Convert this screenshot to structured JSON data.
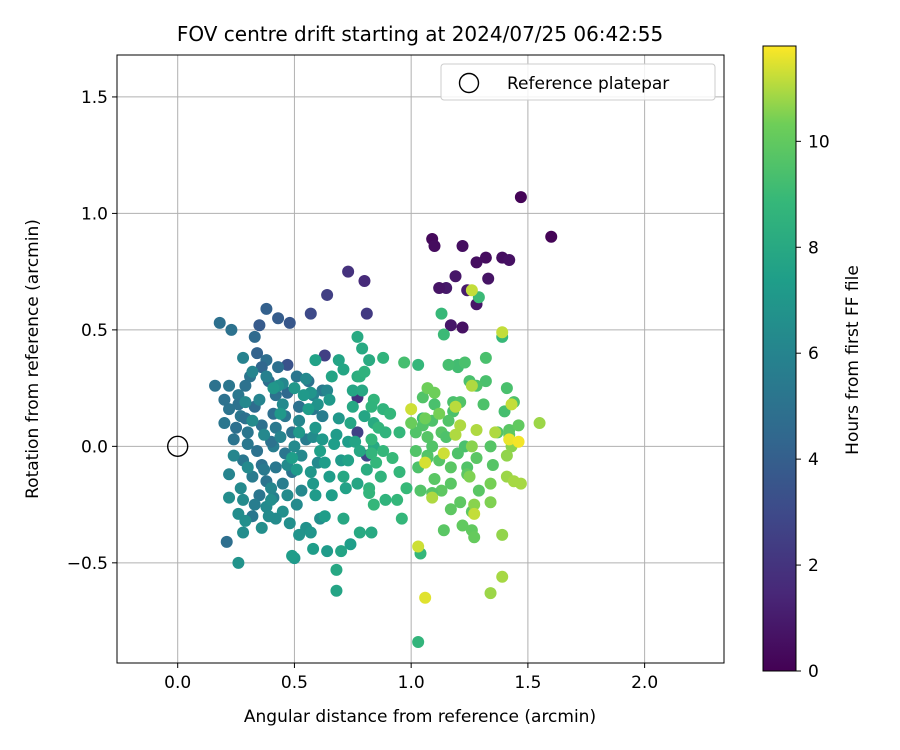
{
  "chart_data": {
    "type": "scatter",
    "title": "FOV centre drift starting at 2024/07/25 06:42:55",
    "xlabel": "Angular distance from reference (arcmin)",
    "ylabel": "Rotation from reference (arcmin)",
    "xlim": [
      -0.26,
      2.34
    ],
    "ylim": [
      -0.93,
      1.68
    ],
    "xticks": [
      0.0,
      0.5,
      1.0,
      1.5,
      2.0
    ],
    "xtick_labels": [
      "0.0",
      "0.5",
      "1.0",
      "1.5",
      "2.0"
    ],
    "yticks": [
      -0.5,
      0.0,
      0.5,
      1.0,
      1.5
    ],
    "ytick_labels": [
      "−0.5",
      "0.0",
      "0.5",
      "1.0",
      "1.5"
    ],
    "grid": true,
    "legend": {
      "placement": "top-right",
      "entries": [
        "Reference platepar"
      ]
    },
    "reference_point": {
      "label": "Reference platepar",
      "x": 0.0,
      "y": 0.0
    },
    "colorbar": {
      "label": "Hours from first FF file",
      "colormap": "viridis",
      "range": [
        0,
        11.8
      ],
      "ticks": [
        0,
        2,
        4,
        6,
        8,
        10
      ],
      "tick_labels": [
        "0",
        "2",
        "4",
        "6",
        "8",
        "10"
      ]
    },
    "points_columns": [
      "x",
      "y",
      "hours"
    ],
    "points": [
      [
        1.47,
        1.07,
        0.1
      ],
      [
        1.6,
        0.9,
        0.1
      ],
      [
        1.09,
        0.89,
        0.3
      ],
      [
        1.1,
        0.86,
        0.4
      ],
      [
        1.22,
        0.86,
        0.5
      ],
      [
        1.32,
        0.81,
        0.4
      ],
      [
        1.39,
        0.81,
        0.5
      ],
      [
        1.42,
        0.8,
        0.6
      ],
      [
        1.28,
        0.79,
        0.5
      ],
      [
        1.33,
        0.72,
        0.7
      ],
      [
        1.19,
        0.73,
        0.8
      ],
      [
        1.15,
        0.68,
        0.9
      ],
      [
        1.12,
        0.68,
        0.7
      ],
      [
        1.24,
        0.67,
        1.0
      ],
      [
        1.28,
        0.61,
        0.8
      ],
      [
        1.17,
        0.52,
        0.8
      ],
      [
        1.22,
        0.51,
        0.6
      ],
      [
        0.73,
        0.75,
        1.9
      ],
      [
        0.8,
        0.71,
        1.6
      ],
      [
        0.64,
        0.65,
        2.5
      ],
      [
        0.81,
        0.57,
        2.3
      ],
      [
        0.57,
        0.57,
        3.0
      ],
      [
        0.63,
        0.39,
        2.5
      ],
      [
        0.47,
        0.35,
        3.4
      ],
      [
        0.48,
        0.53,
        3.6
      ],
      [
        0.77,
        0.06,
        2.6
      ],
      [
        0.81,
        -0.04,
        2.8
      ],
      [
        0.77,
        0.21,
        2.0
      ],
      [
        0.52,
        0.17,
        3.3
      ],
      [
        0.35,
        0.52,
        3.8
      ],
      [
        0.43,
        0.55,
        3.9
      ],
      [
        0.38,
        0.59,
        4.1
      ],
      [
        0.18,
        0.53,
        4.9
      ],
      [
        0.23,
        0.5,
        5.0
      ],
      [
        0.33,
        0.47,
        4.6
      ],
      [
        0.34,
        0.4,
        4.2
      ],
      [
        0.38,
        0.37,
        4.8
      ],
      [
        0.43,
        0.34,
        4.9
      ],
      [
        0.36,
        0.34,
        4.4
      ],
      [
        0.31,
        0.3,
        5.1
      ],
      [
        0.39,
        0.28,
        4.7
      ],
      [
        0.29,
        0.26,
        5.0
      ],
      [
        0.16,
        0.26,
        5.0
      ],
      [
        0.22,
        0.26,
        5.2
      ],
      [
        0.26,
        0.22,
        5.3
      ],
      [
        0.42,
        0.22,
        5.0
      ],
      [
        0.47,
        0.23,
        4.5
      ],
      [
        0.51,
        0.3,
        5.2
      ],
      [
        0.56,
        0.28,
        5.0
      ],
      [
        0.62,
        0.24,
        5.4
      ],
      [
        0.26,
        0.18,
        5.0
      ],
      [
        0.33,
        0.17,
        4.7
      ],
      [
        0.22,
        0.16,
        5.1
      ],
      [
        0.41,
        0.14,
        4.8
      ],
      [
        0.46,
        0.13,
        5.2
      ],
      [
        0.52,
        0.17,
        5.0
      ],
      [
        0.58,
        0.16,
        5.3
      ],
      [
        0.62,
        0.13,
        5.6
      ],
      [
        0.2,
        0.1,
        5.2
      ],
      [
        0.25,
        0.08,
        4.9
      ],
      [
        0.3,
        0.06,
        5.2
      ],
      [
        0.36,
        0.09,
        4.9
      ],
      [
        0.42,
        0.08,
        5.4
      ],
      [
        0.49,
        0.06,
        5.1
      ],
      [
        0.55,
        0.03,
        5.5
      ],
      [
        0.24,
        0.03,
        5.1
      ],
      [
        0.3,
        0.01,
        5.3
      ],
      [
        0.34,
        -0.02,
        5.0
      ],
      [
        0.41,
        0.0,
        5.6
      ],
      [
        0.46,
        -0.03,
        5.2
      ],
      [
        0.28,
        -0.06,
        5.3
      ],
      [
        0.36,
        -0.08,
        5.0
      ],
      [
        0.42,
        -0.09,
        5.3
      ],
      [
        0.49,
        -0.11,
        5.1
      ],
      [
        0.32,
        -0.13,
        5.5
      ],
      [
        0.38,
        -0.15,
        5.1
      ],
      [
        0.45,
        -0.16,
        5.6
      ],
      [
        0.35,
        -0.21,
        5.2
      ],
      [
        0.41,
        -0.22,
        5.7
      ],
      [
        0.33,
        -0.25,
        5.6
      ],
      [
        0.21,
        -0.41,
        4.8
      ],
      [
        0.32,
        -0.3,
        5.3
      ],
      [
        0.37,
        -0.1,
        5.4
      ],
      [
        0.27,
        0.13,
        5.2
      ],
      [
        0.4,
        0.02,
        5.0
      ],
      [
        0.2,
        0.2,
        5.0
      ],
      [
        0.29,
        0.12,
        4.9
      ],
      [
        0.28,
        0.38,
        5.9
      ],
      [
        0.32,
        0.32,
        6.0
      ],
      [
        0.38,
        0.3,
        5.8
      ],
      [
        0.45,
        0.27,
        6.1
      ],
      [
        0.55,
        0.29,
        6.2
      ],
      [
        0.58,
        0.22,
        5.9
      ],
      [
        0.64,
        0.24,
        6.1
      ],
      [
        0.35,
        0.2,
        6.0
      ],
      [
        0.45,
        0.18,
        6.3
      ],
      [
        0.52,
        0.11,
        6.1
      ],
      [
        0.29,
        0.19,
        6.2
      ],
      [
        0.32,
        0.11,
        6.4
      ],
      [
        0.37,
        0.05,
        6.2
      ],
      [
        0.44,
        0.04,
        6.0
      ],
      [
        0.5,
        0.0,
        6.3
      ],
      [
        0.58,
        0.04,
        6.4
      ],
      [
        0.24,
        -0.04,
        6.1
      ],
      [
        0.3,
        -0.09,
        6.3
      ],
      [
        0.47,
        -0.08,
        6.4
      ],
      [
        0.53,
        -0.04,
        6.2
      ],
      [
        0.6,
        -0.07,
        6.3
      ],
      [
        0.22,
        -0.12,
        6.0
      ],
      [
        0.27,
        -0.18,
        6.3
      ],
      [
        0.4,
        -0.18,
        6.1
      ],
      [
        0.47,
        -0.21,
        6.4
      ],
      [
        0.53,
        -0.19,
        6.2
      ],
      [
        0.28,
        -0.23,
        6.4
      ],
      [
        0.38,
        -0.26,
        6.3
      ],
      [
        0.45,
        -0.28,
        6.6
      ],
      [
        0.51,
        -0.25,
        6.3
      ],
      [
        0.29,
        -0.32,
        6.6
      ],
      [
        0.39,
        -0.3,
        6.4
      ],
      [
        0.42,
        -0.31,
        6.4
      ],
      [
        0.48,
        -0.33,
        6.6
      ],
      [
        0.55,
        -0.35,
        6.7
      ],
      [
        0.61,
        -0.31,
        6.6
      ],
      [
        0.26,
        -0.29,
        6.5
      ],
      [
        0.28,
        -0.37,
        6.5
      ],
      [
        0.36,
        -0.35,
        6.6
      ],
      [
        0.52,
        -0.38,
        6.8
      ],
      [
        0.57,
        -0.37,
        6.9
      ],
      [
        0.26,
        -0.5,
        6.8
      ],
      [
        0.22,
        -0.22,
        6.5
      ],
      [
        0.4,
        -0.23,
        6.5
      ],
      [
        0.5,
        -0.48,
        7.1
      ],
      [
        0.43,
        0.26,
        6.7
      ],
      [
        0.41,
        0.25,
        7.0
      ],
      [
        0.5,
        0.25,
        7.0
      ],
      [
        0.57,
        0.23,
        6.9
      ],
      [
        0.6,
        0.18,
        6.8
      ],
      [
        0.54,
        0.22,
        7.1
      ],
      [
        0.65,
        0.2,
        7.1
      ],
      [
        0.69,
        0.12,
        7.0
      ],
      [
        0.44,
        0.14,
        7.1
      ],
      [
        0.59,
        0.08,
        7.0
      ],
      [
        0.62,
        0.03,
        7.1
      ],
      [
        0.68,
        0.05,
        7.2
      ],
      [
        0.73,
        0.02,
        7.3
      ],
      [
        0.51,
        -0.1,
        7.2
      ],
      [
        0.57,
        -0.11,
        7.0
      ],
      [
        0.63,
        -0.07,
        7.3
      ],
      [
        0.7,
        -0.06,
        7.2
      ],
      [
        0.58,
        -0.16,
        7.1
      ],
      [
        0.65,
        -0.13,
        7.3
      ],
      [
        0.59,
        -0.21,
        7.2
      ],
      [
        0.66,
        -0.21,
        7.4
      ],
      [
        0.63,
        -0.3,
        7.3
      ],
      [
        0.58,
        -0.44,
        7.3
      ],
      [
        0.49,
        -0.47,
        7.3
      ],
      [
        0.64,
        -0.45,
        7.2
      ],
      [
        0.74,
        -0.42,
        7.4
      ],
      [
        0.72,
        -0.18,
        7.6
      ],
      [
        0.52,
        0.06,
        7.1
      ],
      [
        0.61,
        -0.02,
        7.5
      ],
      [
        0.67,
        0.01,
        7.4
      ],
      [
        0.49,
        -0.05,
        7.4
      ],
      [
        0.56,
        0.16,
        7.3
      ],
      [
        0.69,
        0.37,
        7.7
      ],
      [
        0.71,
        0.33,
        7.8
      ],
      [
        0.59,
        0.37,
        7.6
      ],
      [
        0.77,
        0.47,
        8.0
      ],
      [
        0.82,
        0.37,
        8.1
      ],
      [
        0.79,
        0.42,
        8.0
      ],
      [
        0.66,
        0.3,
        7.7
      ],
      [
        0.75,
        0.24,
        7.8
      ],
      [
        0.79,
        0.24,
        7.9
      ],
      [
        0.75,
        0.17,
        7.9
      ],
      [
        0.8,
        0.13,
        7.8
      ],
      [
        0.84,
        0.1,
        8.1
      ],
      [
        0.74,
        0.1,
        7.8
      ],
      [
        0.76,
        0.02,
        7.7
      ],
      [
        0.84,
        0.0,
        8.0
      ],
      [
        0.78,
        -0.02,
        7.9
      ],
      [
        0.71,
        -0.13,
        7.9
      ],
      [
        0.77,
        -0.16,
        7.8
      ],
      [
        0.71,
        -0.31,
        7.9
      ],
      [
        0.78,
        -0.37,
        8.0
      ],
      [
        0.83,
        -0.37,
        8.0
      ],
      [
        0.68,
        -0.53,
        7.9
      ],
      [
        0.68,
        -0.62,
        7.7
      ],
      [
        0.7,
        -0.45,
        7.7
      ],
      [
        0.73,
        -0.06,
        7.6
      ],
      [
        0.81,
        -0.1,
        8.2
      ],
      [
        0.77,
        0.3,
        8.2
      ],
      [
        0.78,
        0.3,
        8.4
      ],
      [
        0.8,
        0.32,
        8.5
      ],
      [
        0.88,
        0.38,
        8.6
      ],
      [
        0.84,
        0.2,
        8.7
      ],
      [
        0.83,
        0.17,
        8.6
      ],
      [
        0.88,
        0.16,
        8.6
      ],
      [
        0.91,
        0.14,
        8.8
      ],
      [
        0.86,
        0.08,
        8.7
      ],
      [
        0.89,
        0.06,
        8.6
      ],
      [
        0.83,
        0.03,
        8.8
      ],
      [
        0.95,
        0.06,
        8.8
      ],
      [
        0.83,
        -0.03,
        8.7
      ],
      [
        0.88,
        -0.02,
        8.8
      ],
      [
        0.92,
        -0.05,
        8.9
      ],
      [
        0.85,
        -0.07,
        8.8
      ],
      [
        0.82,
        -0.18,
        8.6
      ],
      [
        0.87,
        -0.13,
        8.6
      ],
      [
        0.82,
        -0.2,
        8.7
      ],
      [
        0.95,
        -0.11,
        8.8
      ],
      [
        0.98,
        -0.18,
        8.9
      ],
      [
        0.84,
        -0.25,
        8.8
      ],
      [
        0.89,
        -0.23,
        8.6
      ],
      [
        0.94,
        -0.23,
        8.8
      ],
      [
        0.96,
        -0.31,
        8.8
      ],
      [
        1.04,
        -0.46,
        8.8
      ],
      [
        1.03,
        -0.84,
        8.7
      ],
      [
        1.05,
        0.12,
        9.0
      ],
      [
        1.13,
        0.57,
        8.9
      ],
      [
        1.14,
        0.48,
        9.0
      ],
      [
        1.03,
        0.35,
        8.8
      ],
      [
        1.29,
        0.64,
        9.0
      ],
      [
        1.39,
        0.47,
        8.9
      ],
      [
        1.2,
        0.34,
        9.2
      ],
      [
        1.2,
        0.35,
        9.2
      ],
      [
        1.16,
        0.35,
        9.3
      ],
      [
        0.97,
        0.36,
        9.3
      ],
      [
        1.23,
        0.36,
        9.4
      ],
      [
        1.32,
        0.38,
        9.4
      ],
      [
        1.25,
        0.28,
        9.4
      ],
      [
        1.32,
        0.28,
        9.4
      ],
      [
        1.28,
        0.26,
        9.5
      ],
      [
        1.41,
        0.25,
        9.4
      ],
      [
        1.44,
        0.19,
        9.5
      ],
      [
        1.4,
        0.15,
        9.3
      ],
      [
        1.31,
        0.18,
        9.5
      ],
      [
        1.18,
        0.19,
        9.4
      ],
      [
        1.21,
        0.19,
        9.6
      ],
      [
        1.05,
        0.21,
        9.6
      ],
      [
        1.1,
        0.18,
        9.4
      ],
      [
        1.18,
        0.15,
        9.4
      ],
      [
        1.16,
        0.11,
        9.6
      ],
      [
        1.09,
        0.11,
        9.5
      ],
      [
        1.05,
        0.09,
        9.6
      ],
      [
        1.02,
        0.06,
        9.6
      ],
      [
        1.07,
        0.04,
        9.7
      ],
      [
        1.13,
        0.06,
        9.7
      ],
      [
        1.15,
        0.04,
        9.5
      ],
      [
        1.23,
        0.0,
        9.4
      ],
      [
        1.09,
        0.0,
        9.6
      ],
      [
        1.07,
        -0.04,
        9.6
      ],
      [
        1.12,
        -0.06,
        9.7
      ],
      [
        1.02,
        -0.02,
        9.6
      ],
      [
        1.2,
        -0.03,
        9.5
      ],
      [
        1.24,
        -0.09,
        9.6
      ],
      [
        1.34,
        0.0,
        9.7
      ],
      [
        1.37,
        0.06,
        9.7
      ],
      [
        1.42,
        0.07,
        9.8
      ],
      [
        1.28,
        -0.05,
        9.8
      ],
      [
        1.35,
        -0.08,
        9.7
      ],
      [
        1.24,
        -0.12,
        9.9
      ],
      [
        1.17,
        -0.16,
        9.8
      ],
      [
        1.13,
        -0.19,
        9.9
      ],
      [
        1.21,
        -0.24,
        9.9
      ],
      [
        1.29,
        -0.19,
        9.8
      ],
      [
        1.09,
        -0.2,
        9.7
      ],
      [
        1.04,
        -0.19,
        9.6
      ],
      [
        1.03,
        -0.09,
        9.5
      ],
      [
        1.14,
        -0.36,
        9.8
      ],
      [
        1.26,
        -0.28,
        9.9
      ],
      [
        1.22,
        -0.34,
        10.0
      ],
      [
        1.17,
        -0.27,
        9.9
      ],
      [
        1.26,
        -0.36,
        10.0
      ],
      [
        1.27,
        -0.39,
        10.1
      ],
      [
        1.07,
        -0.05,
        9.7
      ],
      [
        1.1,
        -0.14,
        9.8
      ],
      [
        1.17,
        -0.09,
        9.8
      ],
      [
        1.46,
        0.09,
        10.0
      ],
      [
        1.42,
        0.05,
        9.9
      ],
      [
        1.0,
        0.1,
        10.2
      ],
      [
        1.06,
        0.12,
        10.3
      ],
      [
        1.12,
        0.14,
        10.4
      ],
      [
        1.07,
        0.25,
        10.3
      ],
      [
        1.1,
        0.23,
        10.3
      ],
      [
        1.25,
        -0.13,
        10.5
      ],
      [
        1.34,
        -0.16,
        10.4
      ],
      [
        1.43,
        0.0,
        10.6
      ],
      [
        1.26,
        0.0,
        10.6
      ],
      [
        1.41,
        -0.04,
        10.7
      ],
      [
        1.27,
        -0.25,
        10.6
      ],
      [
        1.34,
        -0.24,
        10.5
      ],
      [
        1.41,
        -0.13,
        10.8
      ],
      [
        1.44,
        -0.15,
        10.9
      ],
      [
        1.47,
        -0.16,
        10.9
      ],
      [
        1.39,
        -0.38,
        10.7
      ],
      [
        1.34,
        -0.63,
        10.8
      ],
      [
        1.39,
        -0.56,
        10.9
      ],
      [
        1.55,
        0.1,
        10.8
      ],
      [
        1.28,
        0.07,
        11.0
      ],
      [
        1.21,
        0.09,
        11.0
      ],
      [
        1.19,
        0.05,
        11.0
      ],
      [
        1.39,
        0.49,
        11.2
      ],
      [
        1.26,
        0.67,
        11.2
      ],
      [
        1.26,
        0.26,
        11.0
      ],
      [
        1.43,
        0.18,
        11.2
      ],
      [
        1.36,
        0.06,
        11.0
      ],
      [
        1.09,
        -0.22,
        11.0
      ],
      [
        1.03,
        -0.43,
        11.3
      ],
      [
        1.06,
        -0.65,
        11.5
      ],
      [
        1.14,
        -0.03,
        11.3
      ],
      [
        1.06,
        -0.07,
        11.4
      ],
      [
        1.19,
        0.17,
        11.1
      ],
      [
        1.27,
        -0.29,
        11.2
      ],
      [
        1.0,
        0.16,
        11.3
      ],
      [
        1.42,
        0.03,
        11.6
      ],
      [
        1.46,
        0.02,
        11.7
      ]
    ]
  }
}
